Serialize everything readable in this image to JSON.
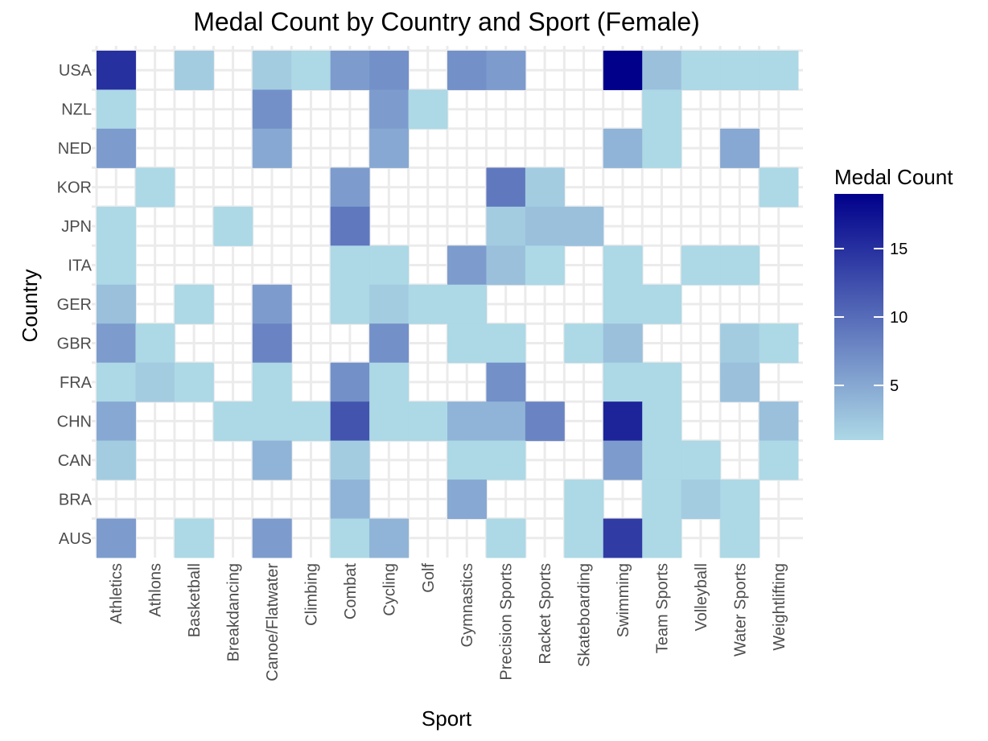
{
  "chart_data": {
    "type": "heatmap",
    "title": "Medal Count by Country and Sport (Female)",
    "xlabel": "Sport",
    "ylabel": "Country",
    "x_categories": [
      "Athletics",
      "Athlons",
      "Basketball",
      "Breakdancing",
      "Canoe/Flatwater",
      "Climbing",
      "Combat",
      "Cycling",
      "Golf",
      "Gymnastics",
      "Precision Sports",
      "Racket Sports",
      "Skateboarding",
      "Swimming",
      "Team Sports",
      "Volleyball",
      "Water Sports",
      "Weightlifting"
    ],
    "y_categories": [
      "USA",
      "NZL",
      "NED",
      "KOR",
      "JPN",
      "ITA",
      "GER",
      "GBR",
      "FRA",
      "CHN",
      "CAN",
      "BRA",
      "AUS"
    ],
    "values": [
      [
        15,
        null,
        2,
        null,
        2,
        1,
        6,
        7,
        null,
        7,
        6,
        null,
        null,
        19,
        3,
        1,
        1,
        1
      ],
      [
        1,
        null,
        null,
        null,
        7,
        null,
        null,
        6,
        1,
        null,
        null,
        null,
        null,
        null,
        1,
        null,
        null,
        null
      ],
      [
        6,
        null,
        null,
        null,
        5,
        null,
        null,
        5,
        null,
        null,
        null,
        null,
        null,
        4,
        1,
        null,
        5,
        null
      ],
      [
        null,
        1,
        null,
        null,
        null,
        null,
        6,
        null,
        null,
        null,
        9,
        2,
        null,
        null,
        null,
        null,
        null,
        1
      ],
      [
        1,
        null,
        null,
        1,
        null,
        null,
        9,
        null,
        null,
        null,
        2,
        3,
        3,
        null,
        null,
        null,
        null,
        null
      ],
      [
        1,
        null,
        null,
        null,
        null,
        null,
        1,
        1,
        null,
        6,
        3,
        1,
        null,
        1,
        null,
        1,
        1,
        null
      ],
      [
        3,
        null,
        1,
        null,
        6,
        null,
        1,
        2,
        1,
        1,
        null,
        null,
        null,
        1,
        1,
        null,
        null,
        null
      ],
      [
        6,
        1,
        null,
        null,
        8,
        null,
        null,
        7,
        null,
        1,
        1,
        null,
        1,
        3,
        null,
        null,
        2,
        1
      ],
      [
        1,
        2,
        1,
        null,
        1,
        null,
        7,
        1,
        null,
        null,
        7,
        null,
        null,
        1,
        1,
        null,
        3,
        null
      ],
      [
        5,
        null,
        null,
        1,
        1,
        1,
        12,
        1,
        1,
        4,
        4,
        8,
        null,
        16,
        1,
        null,
        null,
        3
      ],
      [
        2,
        null,
        null,
        null,
        4,
        null,
        2,
        null,
        null,
        1,
        1,
        null,
        null,
        6,
        1,
        1,
        null,
        1
      ],
      [
        null,
        null,
        null,
        null,
        null,
        null,
        4,
        null,
        null,
        5,
        null,
        null,
        1,
        null,
        1,
        2,
        1,
        null
      ],
      [
        6,
        null,
        1,
        null,
        6,
        null,
        1,
        4,
        null,
        null,
        1,
        null,
        1,
        14,
        1,
        null,
        1,
        null
      ]
    ],
    "legend": {
      "title": "Medal Count",
      "ticks": [
        5,
        10,
        15
      ],
      "range": [
        1,
        19
      ],
      "colors": [
        "#add8e6",
        "#00008b"
      ],
      "placement": "right"
    },
    "grid": true
  }
}
